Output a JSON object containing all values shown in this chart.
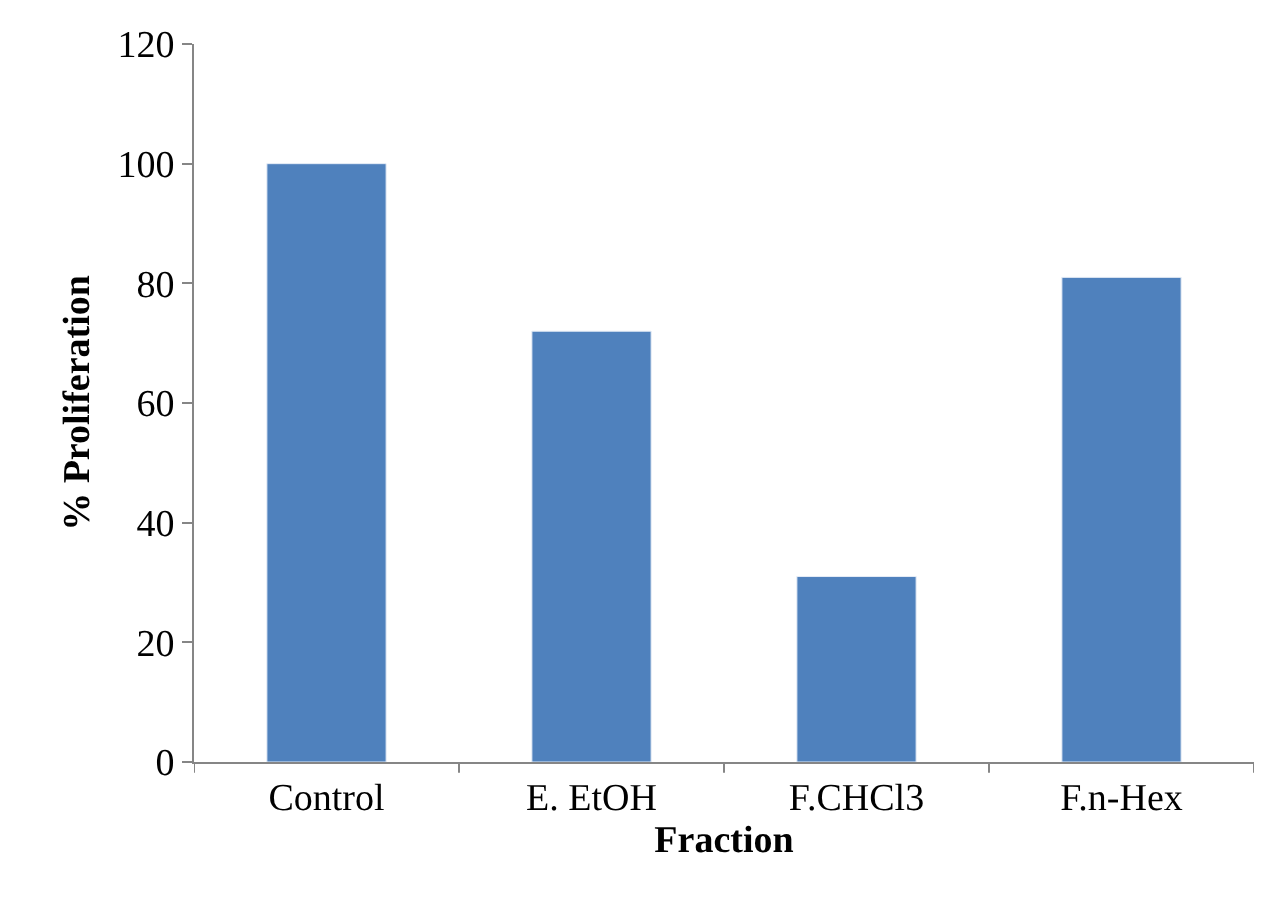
{
  "chart_data": {
    "type": "bar",
    "categories": [
      "Control",
      "E. EtOH",
      "F.CHCl3",
      "F.n-Hex"
    ],
    "values": [
      100,
      72,
      31,
      81
    ],
    "color": "#4f81bd",
    "xlabel": "Fraction",
    "ylabel": "% Proliferation",
    "ylim": [
      0,
      120
    ],
    "yticks": [
      0,
      20,
      40,
      60,
      80,
      100,
      120
    ],
    "legend": false
  }
}
